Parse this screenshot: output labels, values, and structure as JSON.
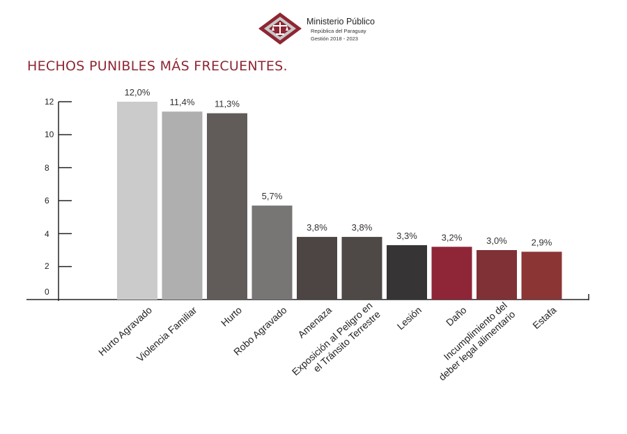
{
  "header": {
    "org_name": "Ministerio Público",
    "org_sub1": "República del Paraguay",
    "org_sub2": "Gestión 2018 - 2023",
    "logo_colors": {
      "outer": "#8e2633",
      "inner": "#c9c9c9"
    }
  },
  "chart_data": {
    "type": "bar",
    "title": "HECHOS PUNIBLES MÁS FRECUENTES.",
    "xlabel": "",
    "ylabel": "",
    "ylim": [
      0,
      12
    ],
    "yticks": [
      "0",
      "2",
      "4",
      "6",
      "8",
      "10",
      "12"
    ],
    "grid": false,
    "categories": [
      [
        "Hurto Agravado"
      ],
      [
        "Violencia Familiar"
      ],
      [
        "Hurto"
      ],
      [
        "Robo Agravado"
      ],
      [
        "Amenaza"
      ],
      [
        "Exposición al Peligro en",
        "el Tránsito Terrestre"
      ],
      [
        "Lesión"
      ],
      [
        "Daño"
      ],
      [
        "Incumplimiento del",
        "deber legal alimentario"
      ],
      [
        "Estafa"
      ]
    ],
    "values": [
      12.0,
      11.4,
      11.3,
      5.7,
      3.8,
      3.8,
      3.3,
      3.2,
      3.0,
      2.9
    ],
    "data_labels": [
      "12,0%",
      "11,4%",
      "11,3%",
      "5,7%",
      "3,8%",
      "3,8%",
      "3,3%",
      "3,2%",
      "3,0%",
      "2,9%"
    ],
    "colors": [
      "#cbcbcb",
      "#afafaf",
      "#615c5a",
      "#787675",
      "#4c4543",
      "#4e4846",
      "#363434",
      "#8f2638",
      "#7f3136",
      "#8c3535"
    ]
  }
}
